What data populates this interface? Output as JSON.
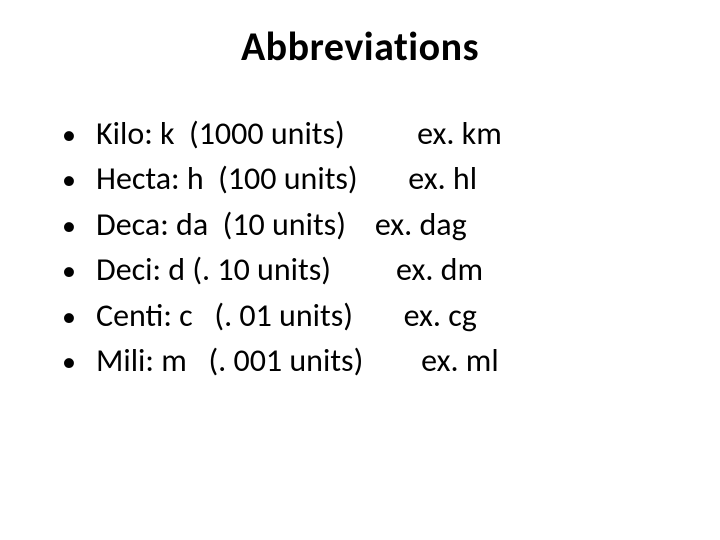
{
  "title": "Abbreviations",
  "text_color": "#000000",
  "background_color": "#ffffff",
  "title_fontsize": 40,
  "body_fontsize": 32,
  "items": [
    {
      "prefix": "Kilo: k  (1000 units)",
      "example": "          ex. km"
    },
    {
      "prefix": "Hecta: h  (100 units)",
      "example": "       ex. hl"
    },
    {
      "prefix": "Deca: da  (10 units)",
      "example": "    ex. dag"
    },
    {
      "prefix": "Deci: d (. 10 units)",
      "example": "         ex. dm"
    },
    {
      "prefix": "Centi: c   (. 01 units)",
      "example": "       ex. cg"
    },
    {
      "prefix": "Mili: m   (. 001 units)",
      "example": "        ex. ml"
    }
  ]
}
